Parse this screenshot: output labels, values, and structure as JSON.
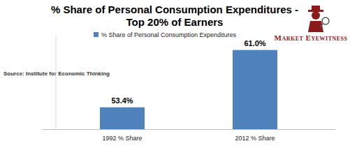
{
  "chart_data": {
    "type": "bar",
    "title": "% Share of Personal Consumption Expenditures -\nTop 20% of Earners",
    "categories": [
      "1992 % Share",
      "2012 % Share"
    ],
    "series": [
      {
        "name": "% Share of Personal Consumption Expenditures",
        "color": "#4f81bd",
        "values": [
          53.4,
          61.0
        ],
        "value_labels": [
          "53.4%",
          "61.0%"
        ]
      }
    ],
    "ylim": [
      50.5,
      63
    ],
    "data_labels": true,
    "tick_labels": "x",
    "legend": "top",
    "grid": false,
    "annotations": [
      "Source: Institute for Economic Thinking",
      "Market Eyewitness"
    ]
  }
}
